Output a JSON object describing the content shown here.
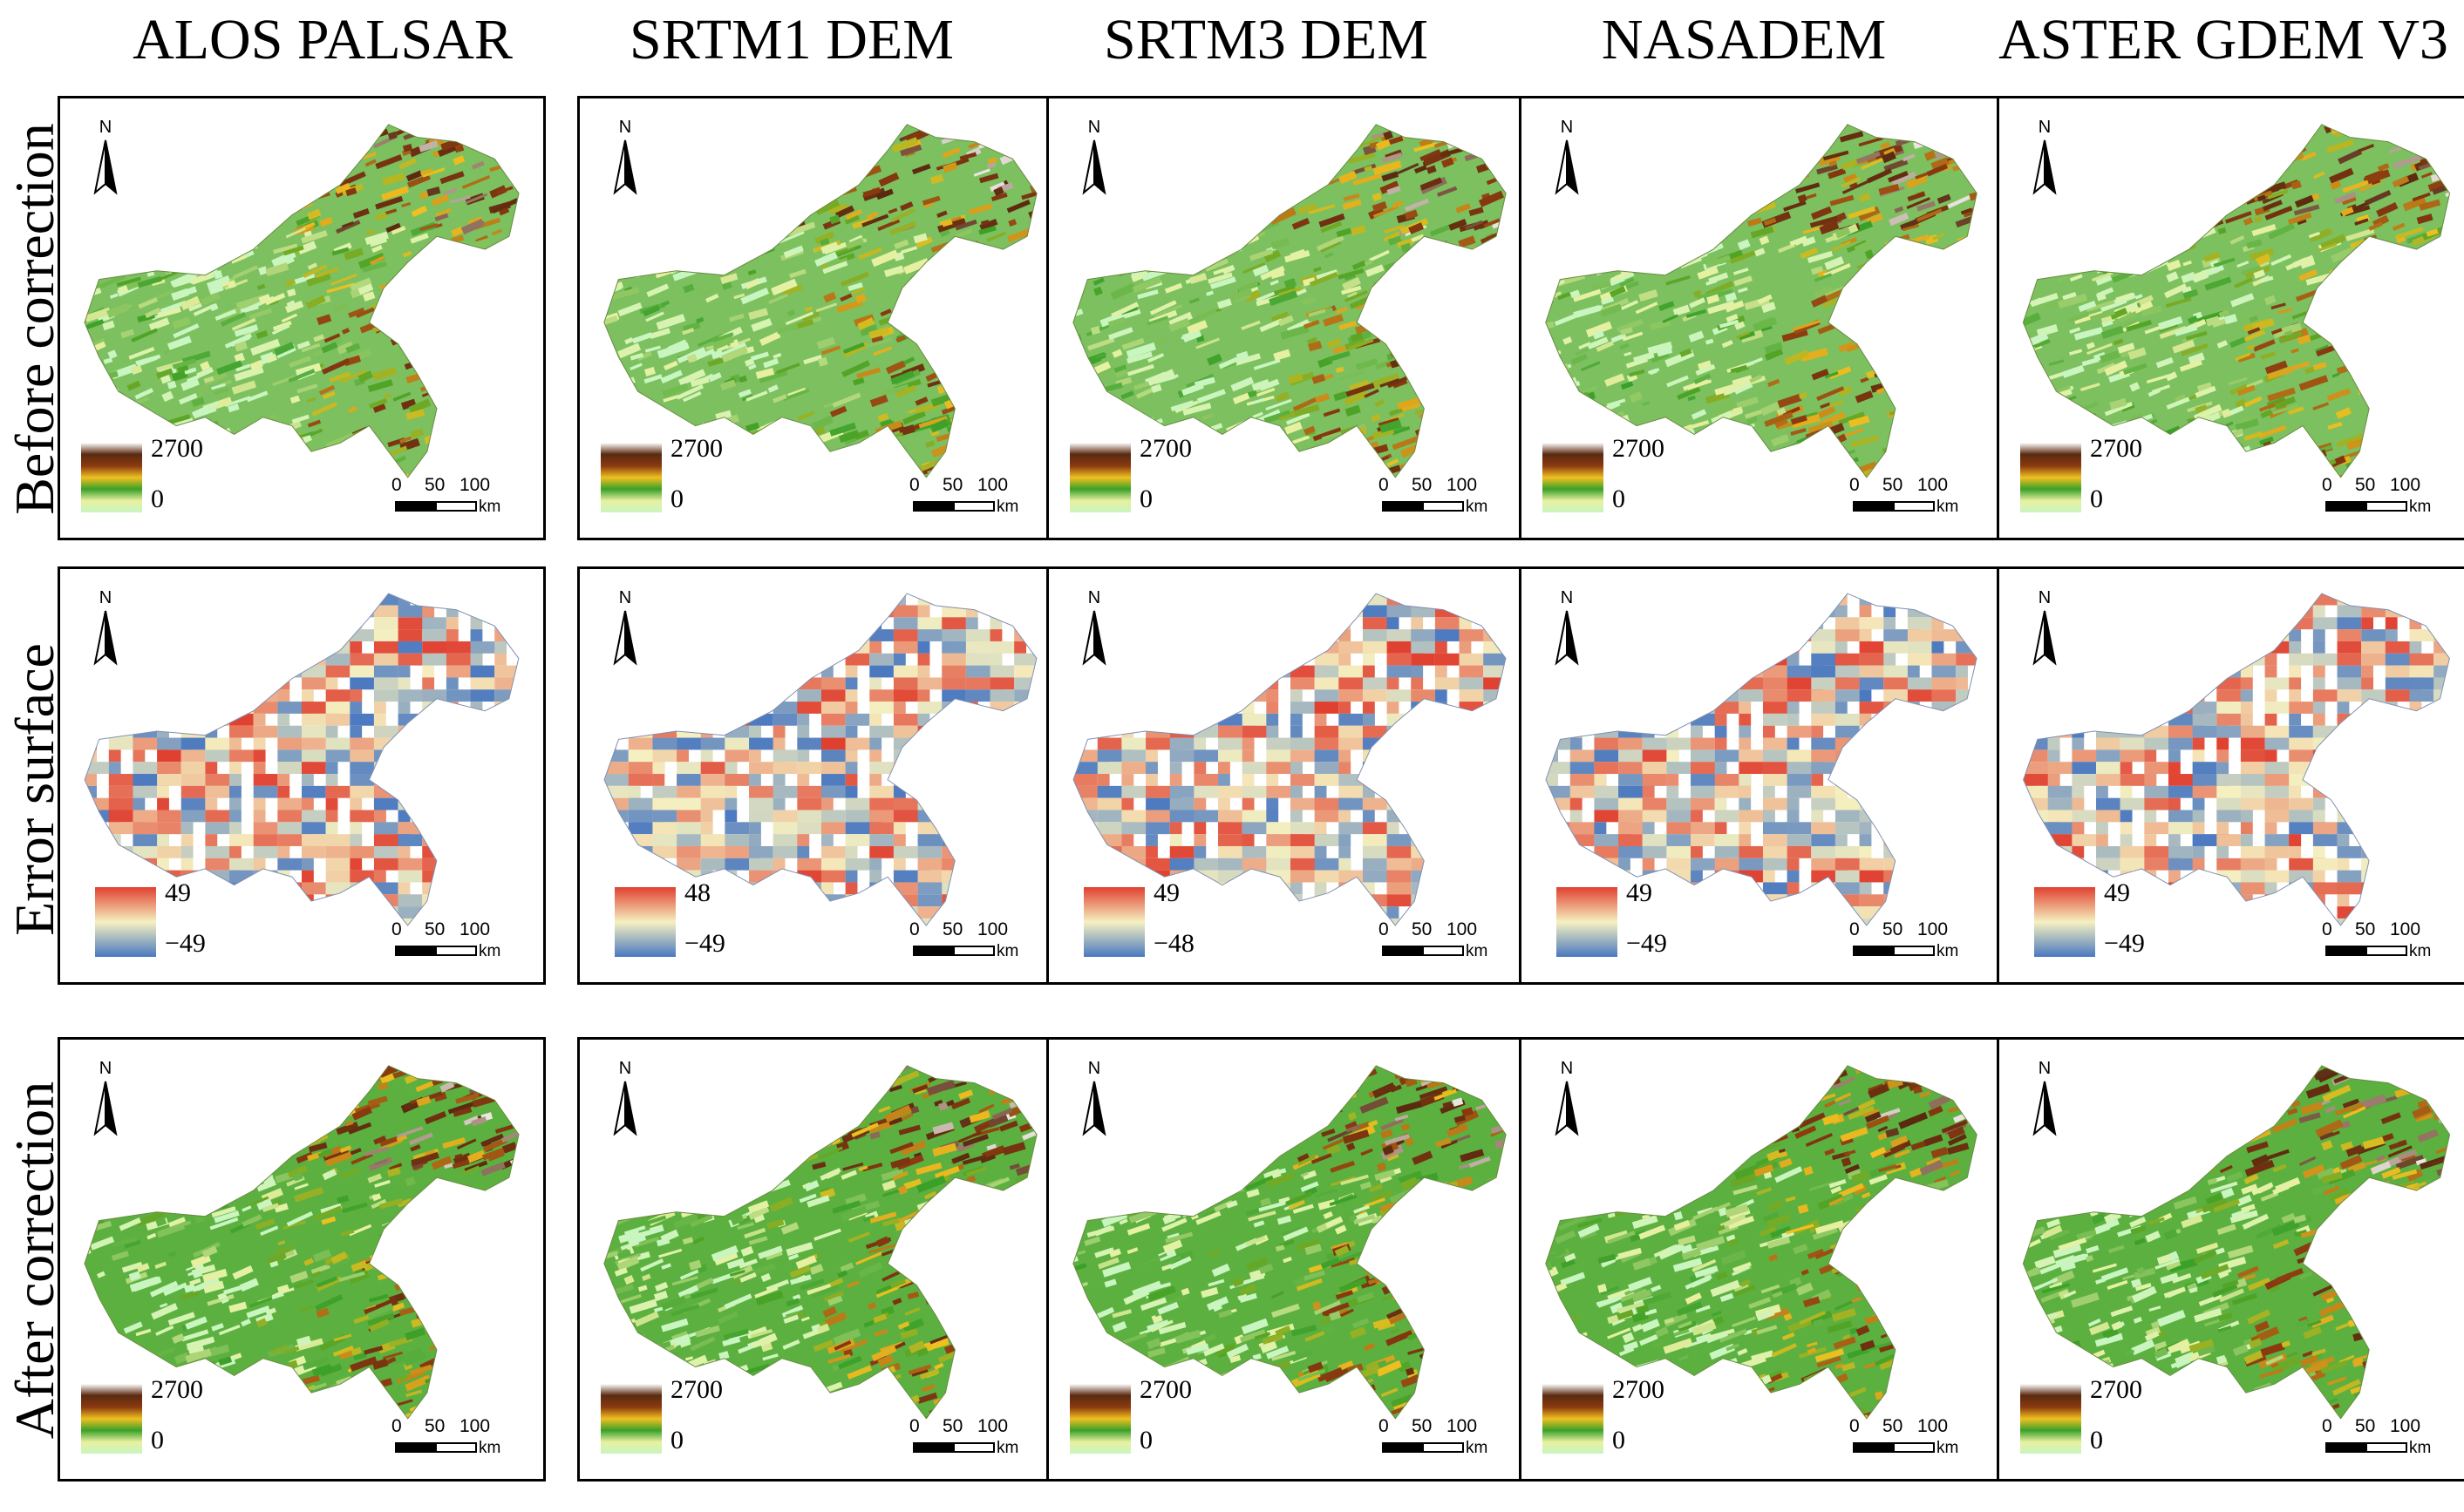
{
  "columns": [
    {
      "title": "ALOS PALSAR"
    },
    {
      "title": "SRTM1 DEM"
    },
    {
      "title": "SRTM3 DEM"
    },
    {
      "title": "NASADEM"
    },
    {
      "title": "ASTER GDEM V3"
    }
  ],
  "rows": [
    {
      "label": "Before correction",
      "type": "elevation"
    },
    {
      "label": "Error surface",
      "type": "error"
    },
    {
      "label": "After correction",
      "type": "elevation"
    }
  ],
  "north_label": "N",
  "scale_bar": {
    "ticks": [
      "0",
      "50",
      "100"
    ],
    "unit": "km"
  },
  "legends": [
    [
      {
        "hi": "2700",
        "lo": "0"
      },
      {
        "hi": "2700",
        "lo": "0"
      },
      {
        "hi": "2700",
        "lo": "0"
      },
      {
        "hi": "2700",
        "lo": "0"
      },
      {
        "hi": "2700",
        "lo": "0"
      }
    ],
    [
      {
        "hi": "49",
        "lo": "−49"
      },
      {
        "hi": "48",
        "lo": "−49"
      },
      {
        "hi": "49",
        "lo": "−48"
      },
      {
        "hi": "49",
        "lo": "−49"
      },
      {
        "hi": "49",
        "lo": "−49"
      }
    ],
    [
      {
        "hi": "2700",
        "lo": "0"
      },
      {
        "hi": "2700",
        "lo": "0"
      },
      {
        "hi": "2700",
        "lo": "0"
      },
      {
        "hi": "2700",
        "lo": "0"
      },
      {
        "hi": "2700",
        "lo": "0"
      }
    ]
  ],
  "colors": {
    "elevation_ramp": [
      "#c8f5c0",
      "#e8f0a0",
      "#3aa028",
      "#f0c020",
      "#8b3a10",
      "#5a2a10",
      "#ffffff"
    ],
    "error_ramp": [
      "#4a78c0",
      "#f5f0c0",
      "#e04030"
    ]
  }
}
